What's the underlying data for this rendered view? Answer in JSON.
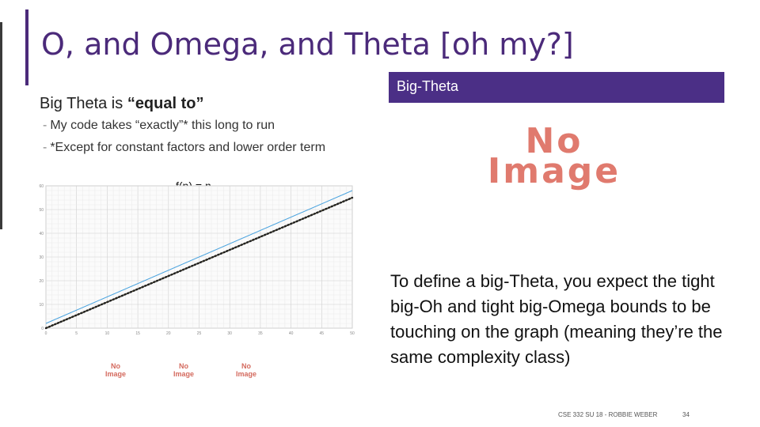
{
  "slide": {
    "title": "O, and Omega, and Theta [oh my?]",
    "lead_prefix": "Big Theta is ",
    "lead_bold": "“equal to”",
    "bullets": [
      "My code takes “exactly”* this long to run",
      "*Except for constant factors and lower order term"
    ],
    "bullet_marker": "-",
    "banner": "Big-Theta",
    "no_image_big": [
      "No",
      "Image"
    ],
    "no_image_small": [
      "No",
      "Image"
    ],
    "body": "To define a big-Theta, you expect the tight big-Oh and tight big-Omega bounds to be touching on the graph (meaning they’re the same complexity class)",
    "footer": "CSE 332 SU 18 - ROBBIE WEBER",
    "page": "34"
  },
  "chart_data": {
    "type": "line",
    "title": "f(n) = n",
    "xlim": [
      0,
      50
    ],
    "ylim": [
      0,
      60
    ],
    "x_ticks": [
      0,
      5,
      10,
      15,
      20,
      25,
      30,
      35,
      40,
      45,
      50
    ],
    "y_ticks": [
      0,
      10,
      20,
      30,
      40,
      50,
      60
    ],
    "grid": true,
    "series": [
      {
        "x": [
          0,
          50
        ],
        "y": [
          2,
          58
        ],
        "color": "#4aa3df",
        "style": "solid"
      },
      {
        "x": [
          0,
          50
        ],
        "y": [
          0,
          55
        ],
        "color": "#e5c400",
        "style": "solid"
      },
      {
        "x": [
          0,
          50
        ],
        "y": [
          0,
          55
        ],
        "color": "#222222",
        "style": "dotted"
      }
    ]
  }
}
